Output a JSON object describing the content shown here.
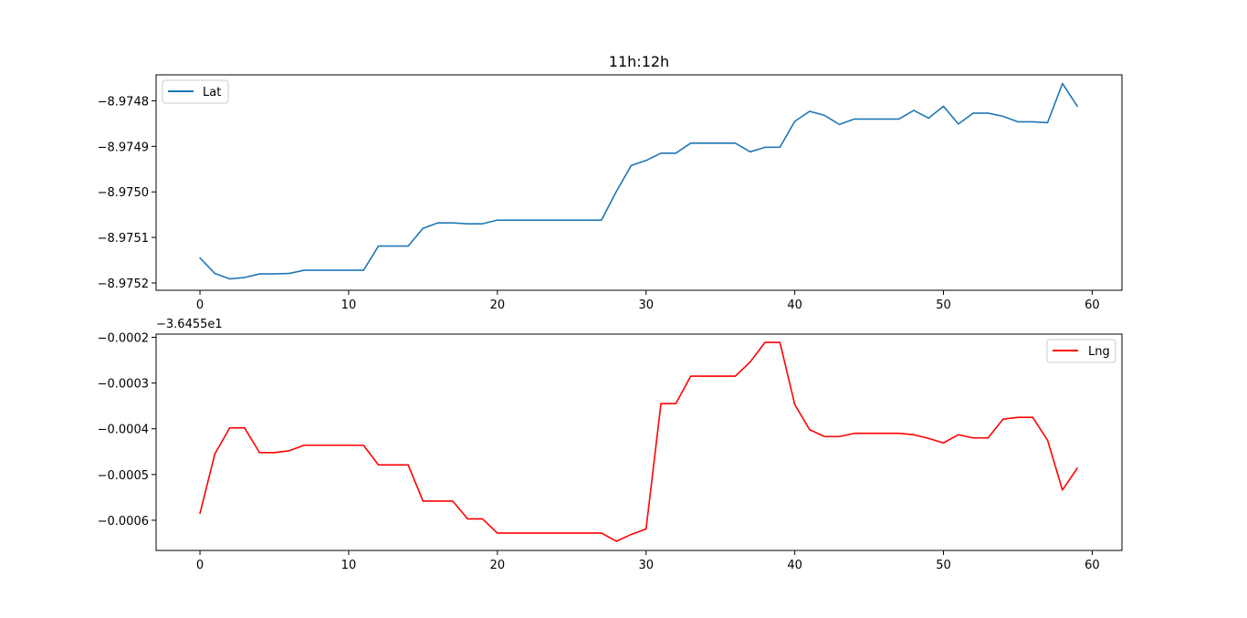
{
  "chart_data": [
    {
      "type": "line",
      "title": "11h:12h",
      "xlabel": "",
      "ylabel": "",
      "offset_text": "",
      "xlim": [
        -2.95,
        62.0
      ],
      "ylim": [
        -8.975216,
        -8.974743
      ],
      "xticks": [
        0,
        10,
        20,
        30,
        40,
        50,
        60
      ],
      "yticks": [
        -8.9752,
        -8.9751,
        -8.975,
        -8.9749,
        -8.9748
      ],
      "ytick_labels": [
        "−8.9752",
        "−8.9751",
        "−8.9750",
        "−8.9749",
        "−8.9748"
      ],
      "xtick_labels": [
        "0",
        "10",
        "20",
        "30",
        "40",
        "50",
        "60"
      ],
      "grid": false,
      "legend_position": "upper-left",
      "series": [
        {
          "name": "Lat",
          "color": "#1f77b4",
          "x": [
            0,
            1,
            2,
            3,
            4,
            5,
            6,
            7,
            8,
            9,
            10,
            11,
            12,
            13,
            14,
            15,
            16,
            17,
            18,
            19,
            20,
            21,
            22,
            23,
            24,
            25,
            26,
            27,
            28,
            29,
            30,
            31,
            32,
            33,
            34,
            35,
            36,
            37,
            38,
            39,
            40,
            41,
            42,
            43,
            44,
            45,
            46,
            47,
            48,
            49,
            50,
            51,
            52,
            53,
            54,
            55,
            56,
            57,
            58,
            59
          ],
          "y": [
            -8.975145,
            -8.975179,
            -8.975191,
            -8.975188,
            -8.97518,
            -8.97518,
            -8.975179,
            -8.975172,
            -8.975172,
            -8.975172,
            -8.975172,
            -8.975172,
            -8.975119,
            -8.975119,
            -8.975119,
            -8.97508,
            -8.975068,
            -8.975068,
            -8.97507,
            -8.97507,
            -8.975062,
            -8.975062,
            -8.975062,
            -8.975062,
            -8.975062,
            -8.975062,
            -8.975062,
            -8.975062,
            -8.974999,
            -8.974942,
            -8.974931,
            -8.974915,
            -8.974915,
            -8.974893,
            -8.974893,
            -8.974893,
            -8.974893,
            -8.974912,
            -8.974902,
            -8.974902,
            -8.974845,
            -8.974823,
            -8.974832,
            -8.974852,
            -8.97484,
            -8.97484,
            -8.97484,
            -8.97484,
            -8.974821,
            -8.974838,
            -8.974812,
            -8.974851,
            -8.974827,
            -8.974827,
            -8.974834,
            -8.974846,
            -8.974846,
            -8.974848,
            -8.974762,
            -8.974812
          ]
        }
      ]
    },
    {
      "type": "line",
      "title": "",
      "xlabel": "",
      "ylabel": "",
      "offset_text": "−3.6455e1",
      "xlim": [
        -2.95,
        62.0
      ],
      "ylim": [
        -0.000666,
        -0.000193
      ],
      "xticks": [
        0,
        10,
        20,
        30,
        40,
        50,
        60
      ],
      "yticks": [
        -0.0006,
        -0.0005,
        -0.0004,
        -0.0003,
        -0.0002
      ],
      "ytick_labels": [
        "−0.0006",
        "−0.0005",
        "−0.0004",
        "−0.0003",
        "−0.0002"
      ],
      "xtick_labels": [
        "0",
        "10",
        "20",
        "30",
        "40",
        "50",
        "60"
      ],
      "grid": false,
      "legend_position": "upper-right",
      "series": [
        {
          "name": "Lng",
          "color": "#ff0000",
          "x": [
            0,
            1,
            2,
            3,
            4,
            5,
            6,
            7,
            8,
            9,
            10,
            11,
            12,
            13,
            14,
            15,
            16,
            17,
            18,
            19,
            20,
            21,
            22,
            23,
            24,
            25,
            26,
            27,
            28,
            29,
            30,
            31,
            32,
            33,
            34,
            35,
            36,
            37,
            38,
            39,
            40,
            41,
            42,
            43,
            44,
            45,
            46,
            47,
            48,
            49,
            50,
            51,
            52,
            53,
            54,
            55,
            56,
            57,
            58,
            59
          ],
          "y": [
            -0.000585,
            -0.000455,
            -0.000398,
            -0.000398,
            -0.000452,
            -0.000452,
            -0.000448,
            -0.000436,
            -0.000436,
            -0.000436,
            -0.000436,
            -0.000436,
            -0.000479,
            -0.000479,
            -0.000479,
            -0.000558,
            -0.000558,
            -0.000558,
            -0.000597,
            -0.000597,
            -0.000628,
            -0.000628,
            -0.000628,
            -0.000628,
            -0.000628,
            -0.000628,
            -0.000628,
            -0.000628,
            -0.000646,
            -0.000631,
            -0.000619,
            -0.000345,
            -0.000345,
            -0.000285,
            -0.000285,
            -0.000285,
            -0.000285,
            -0.000254,
            -0.000211,
            -0.000211,
            -0.000347,
            -0.000402,
            -0.000417,
            -0.000417,
            -0.00041,
            -0.00041,
            -0.00041,
            -0.00041,
            -0.000413,
            -0.000421,
            -0.000431,
            -0.000413,
            -0.00042,
            -0.00042,
            -0.000379,
            -0.000375,
            -0.000375,
            -0.000425,
            -0.000534,
            -0.000486
          ]
        }
      ]
    }
  ]
}
